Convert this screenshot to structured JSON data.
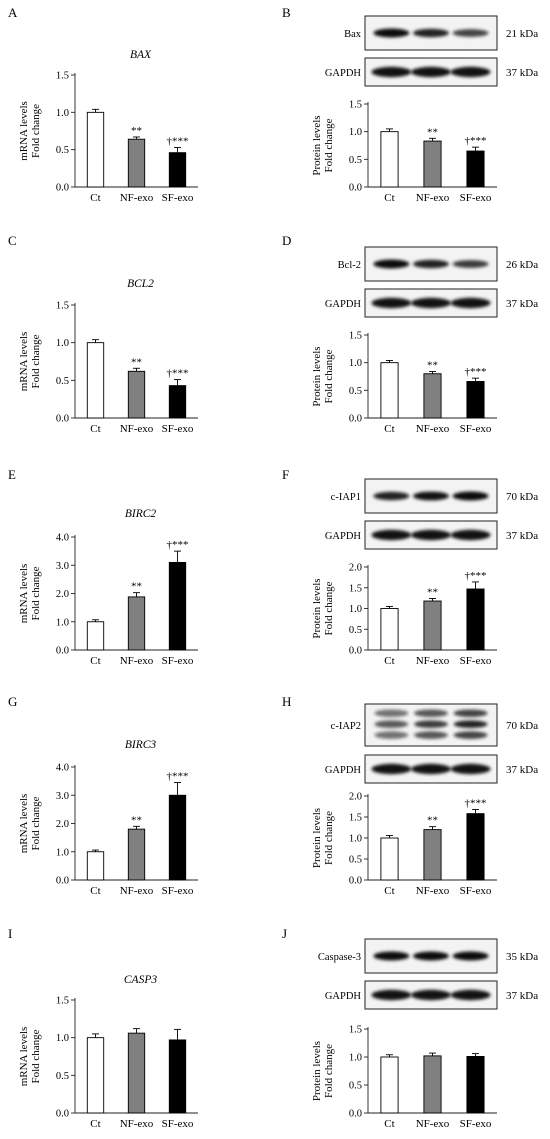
{
  "panel_letters": [
    "A",
    "B",
    "C",
    "D",
    "E",
    "F",
    "G",
    "H",
    "I",
    "J"
  ],
  "blots": [
    {
      "protein": "Bax",
      "protein_kda": "21 kDa",
      "loading": "GAPDH",
      "loading_kda": "37 kDa",
      "intensity": [
        1.0,
        0.85,
        0.62
      ]
    },
    {
      "protein": "Bcl-2",
      "protein_kda": "26 kDa",
      "loading": "GAPDH",
      "loading_kda": "37 kDa",
      "intensity": [
        1.0,
        0.85,
        0.68
      ]
    },
    {
      "protein": "c-IAP1",
      "protein_kda": "70 kDa",
      "loading": "GAPDH",
      "loading_kda": "37 kDa",
      "intensity": [
        0.85,
        0.95,
        1.0
      ]
    },
    {
      "protein": "c-IAP2",
      "protein_kda": "70 kDa",
      "loading": "GAPDH",
      "loading_kda": "37 kDa",
      "intensity": [
        0.55,
        0.8,
        1.0
      ]
    },
    {
      "protein": "Caspase-3",
      "protein_kda": "35 kDa",
      "loading": "GAPDH",
      "loading_kda": "37 kDa",
      "intensity": [
        1.0,
        1.0,
        1.0
      ]
    }
  ],
  "chart_data": [
    {
      "panel": "A",
      "type": "bar",
      "title": "BAX",
      "ylabel": [
        "mRNA levels",
        "Fold change"
      ],
      "categories": [
        "Ct",
        "NF-exo",
        "SF-exo"
      ],
      "values": [
        1.0,
        0.64,
        0.46
      ],
      "errors": [
        0.04,
        0.03,
        0.07
      ],
      "significance": [
        "",
        "**",
        "†***"
      ],
      "ylim": [
        0,
        1.5
      ],
      "yticks": [
        "0.0",
        "0.5",
        "1.0",
        "1.5"
      ],
      "colors": [
        "#ffffff",
        "#808080",
        "#000000"
      ]
    },
    {
      "panel": "B",
      "type": "bar",
      "title": "",
      "ylabel": [
        "Protein levels",
        "Fold change"
      ],
      "categories": [
        "Ct",
        "NF-exo",
        "SF-exo"
      ],
      "values": [
        1.0,
        0.83,
        0.65
      ],
      "errors": [
        0.05,
        0.05,
        0.07
      ],
      "significance": [
        "",
        "**",
        "†***"
      ],
      "ylim": [
        0,
        1.5
      ],
      "yticks": [
        "0.0",
        "0.5",
        "1.0",
        "1.5"
      ],
      "colors": [
        "#ffffff",
        "#808080",
        "#000000"
      ]
    },
    {
      "panel": "C",
      "type": "bar",
      "title": "BCL2",
      "ylabel": [
        "mRNA levels",
        "Fold change"
      ],
      "categories": [
        "Ct",
        "NF-exo",
        "SF-exo"
      ],
      "values": [
        1.0,
        0.62,
        0.43
      ],
      "errors": [
        0.04,
        0.04,
        0.08
      ],
      "significance": [
        "",
        "**",
        "†***"
      ],
      "ylim": [
        0,
        1.5
      ],
      "yticks": [
        "0.0",
        "0.5",
        "1.0",
        "1.5"
      ],
      "colors": [
        "#ffffff",
        "#808080",
        "#000000"
      ]
    },
    {
      "panel": "D",
      "type": "bar",
      "title": "",
      "ylabel": [
        "Protein levels",
        "Fold change"
      ],
      "categories": [
        "Ct",
        "NF-exo",
        "SF-exo"
      ],
      "values": [
        1.0,
        0.8,
        0.66
      ],
      "errors": [
        0.04,
        0.04,
        0.06
      ],
      "significance": [
        "",
        "**",
        "†***"
      ],
      "ylim": [
        0,
        1.5
      ],
      "yticks": [
        "0.0",
        "0.5",
        "1.0",
        "1.5"
      ],
      "colors": [
        "#ffffff",
        "#808080",
        "#000000"
      ]
    },
    {
      "panel": "E",
      "type": "bar",
      "title": "BIRC2",
      "ylabel": [
        "mRNA levels",
        "Fold change"
      ],
      "categories": [
        "Ct",
        "NF-exo",
        "SF-exo"
      ],
      "values": [
        1.0,
        1.88,
        3.1
      ],
      "errors": [
        0.07,
        0.15,
        0.4
      ],
      "significance": [
        "",
        "**",
        "†***"
      ],
      "ylim": [
        0,
        4.0
      ],
      "yticks": [
        "0.0",
        "1.0",
        "2.0",
        "3.0",
        "4.0"
      ],
      "colors": [
        "#ffffff",
        "#808080",
        "#000000"
      ]
    },
    {
      "panel": "F",
      "type": "bar",
      "title": "",
      "ylabel": [
        "Protein levels",
        "Fold change"
      ],
      "categories": [
        "Ct",
        "NF-exo",
        "SF-exo"
      ],
      "values": [
        1.0,
        1.18,
        1.47
      ],
      "errors": [
        0.05,
        0.06,
        0.17
      ],
      "significance": [
        "",
        "**",
        "†***"
      ],
      "ylim": [
        0,
        2.0
      ],
      "yticks": [
        "0.0",
        "0.5",
        "1.0",
        "1.5",
        "2.0"
      ],
      "colors": [
        "#ffffff",
        "#808080",
        "#000000"
      ]
    },
    {
      "panel": "G",
      "type": "bar",
      "title": "BIRC3",
      "ylabel": [
        "mRNA levels",
        "Fold change"
      ],
      "categories": [
        "Ct",
        "NF-exo",
        "SF-exo"
      ],
      "values": [
        1.0,
        1.8,
        3.0
      ],
      "errors": [
        0.06,
        0.1,
        0.45
      ],
      "significance": [
        "",
        "**",
        "†***"
      ],
      "ylim": [
        0,
        4.0
      ],
      "yticks": [
        "0.0",
        "1.0",
        "2.0",
        "3.0",
        "4.0"
      ],
      "colors": [
        "#ffffff",
        "#808080",
        "#000000"
      ]
    },
    {
      "panel": "H",
      "type": "bar",
      "title": "",
      "ylabel": [
        "Protein levels",
        "Fold change"
      ],
      "categories": [
        "Ct",
        "NF-exo",
        "SF-exo"
      ],
      "values": [
        1.0,
        1.2,
        1.58
      ],
      "errors": [
        0.06,
        0.07,
        0.1
      ],
      "significance": [
        "",
        "**",
        "†***"
      ],
      "ylim": [
        0,
        2.0
      ],
      "yticks": [
        "0.0",
        "0.5",
        "1.0",
        "1.5",
        "2.0"
      ],
      "colors": [
        "#ffffff",
        "#808080",
        "#000000"
      ]
    },
    {
      "panel": "I",
      "type": "bar",
      "title": "CASP3",
      "ylabel": [
        "mRNA levels",
        "Fold change"
      ],
      "categories": [
        "Ct",
        "NF-exo",
        "SF-exo"
      ],
      "values": [
        1.0,
        1.06,
        0.97
      ],
      "errors": [
        0.05,
        0.06,
        0.14
      ],
      "significance": [
        "",
        "",
        ""
      ],
      "ylim": [
        0,
        1.5
      ],
      "yticks": [
        "0.0",
        "0.5",
        "1.0",
        "1.5"
      ],
      "colors": [
        "#ffffff",
        "#808080",
        "#000000"
      ]
    },
    {
      "panel": "J",
      "type": "bar",
      "title": "",
      "ylabel": [
        "Protein levels",
        "Fold change"
      ],
      "categories": [
        "Ct",
        "NF-exo",
        "SF-exo"
      ],
      "values": [
        1.0,
        1.02,
        1.01
      ],
      "errors": [
        0.04,
        0.05,
        0.05
      ],
      "significance": [
        "",
        "",
        ""
      ],
      "ylim": [
        0,
        1.5
      ],
      "yticks": [
        "0.0",
        "0.5",
        "1.0",
        "1.5"
      ],
      "colors": [
        "#ffffff",
        "#808080",
        "#000000"
      ]
    }
  ]
}
